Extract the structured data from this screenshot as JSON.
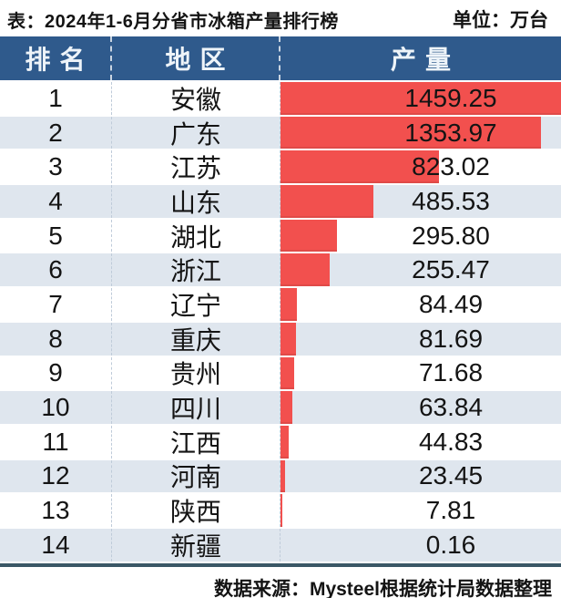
{
  "header": {
    "title": "表：2024年1-6月分省市冰箱产量排行榜",
    "unit": "单位：万台"
  },
  "table": {
    "columns": [
      "排名",
      "地区",
      "产量"
    ],
    "rows": [
      {
        "rank": "1",
        "region": "安徽",
        "value": "1459.25"
      },
      {
        "rank": "2",
        "region": "广东",
        "value": "1353.97"
      },
      {
        "rank": "3",
        "region": "江苏",
        "value": "823.02"
      },
      {
        "rank": "4",
        "region": "山东",
        "value": "485.53"
      },
      {
        "rank": "5",
        "region": "湖北",
        "value": "295.80"
      },
      {
        "rank": "6",
        "region": "浙江",
        "value": "255.47"
      },
      {
        "rank": "7",
        "region": "辽宁",
        "value": "84.49"
      },
      {
        "rank": "8",
        "region": "重庆",
        "value": "81.69"
      },
      {
        "rank": "9",
        "region": "贵州",
        "value": "71.68"
      },
      {
        "rank": "10",
        "region": "四川",
        "value": "63.84"
      },
      {
        "rank": "11",
        "region": "江西",
        "value": "44.83"
      },
      {
        "rank": "12",
        "region": "河南",
        "value": "23.45"
      },
      {
        "rank": "13",
        "region": "陕西",
        "value": "7.81"
      },
      {
        "rank": "14",
        "region": "新疆",
        "value": "0.16"
      }
    ]
  },
  "footer": {
    "source": "数据来源：Mysteel根据统计局数据整理"
  },
  "colors": {
    "header_bg": "#2f5a8c",
    "bar": "#f2504e",
    "row": "#ffffff",
    "row_alt": "#dfe6ee",
    "bottom_line": "#3a5766"
  },
  "chart_data": {
    "type": "bar",
    "orientation": "horizontal",
    "title": "2024年1-6月分省市冰箱产量排行榜",
    "unit": "万台",
    "categories": [
      "安徽",
      "广东",
      "江苏",
      "山东",
      "湖北",
      "浙江",
      "辽宁",
      "重庆",
      "贵州",
      "四川",
      "江西",
      "河南",
      "陕西",
      "新疆"
    ],
    "values": [
      1459.25,
      1353.97,
      823.02,
      485.53,
      295.8,
      255.47,
      84.49,
      81.69,
      71.68,
      63.84,
      44.83,
      23.45,
      7.81,
      0.16
    ],
    "xlabel": "产量",
    "ylabel": "地区",
    "xlim": [
      0,
      1459.25
    ],
    "grid": false,
    "legend": false,
    "source": "数据来源：Mysteel根据统计局数据整理"
  }
}
